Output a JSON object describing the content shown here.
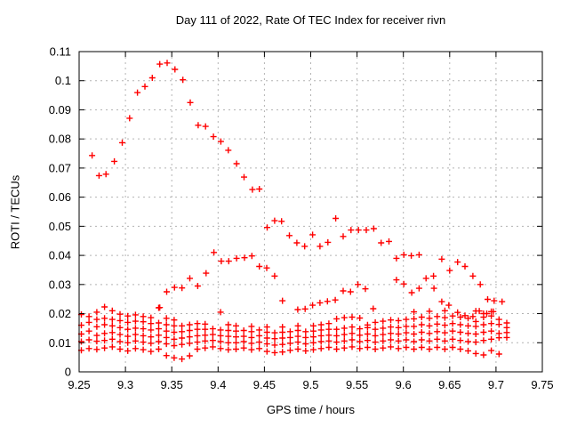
{
  "title": "Day 111 of 2022, Rate Of TEC Index for receiver rivn",
  "colors": {
    "marker": "#ff0000",
    "grid": "#b3b3b3",
    "border": "#000000",
    "background": "#ffffff"
  },
  "chart_data": {
    "type": "scatter",
    "title": "Day 111 of 2022, Rate Of TEC Index for receiver rivn",
    "xlabel": "GPS time / hours",
    "ylabel": "ROTI / TECUs",
    "xlim": [
      9.25,
      9.75
    ],
    "ylim": [
      0,
      0.11
    ],
    "xticks": [
      9.25,
      9.3,
      9.35,
      9.4,
      9.45,
      9.5,
      9.55,
      9.6,
      9.65,
      9.7,
      9.75
    ],
    "xtick_labels": [
      "9.25",
      "9.3",
      "9.35",
      "9.4",
      "9.45",
      "9.5",
      "9.55",
      "9.6",
      "9.65",
      "9.7",
      "9.75"
    ],
    "yticks": [
      0,
      0.01,
      0.02,
      0.03,
      0.04,
      0.05,
      0.06,
      0.07,
      0.08,
      0.09,
      0.1,
      0.11
    ],
    "ytick_labels": [
      "0",
      "0.01",
      "0.02",
      "0.03",
      "0.04",
      "0.05",
      "0.06",
      "0.07",
      "0.08",
      "0.09",
      "0.1",
      "0.11"
    ],
    "grid": true,
    "legend": "none",
    "marker": "plus",
    "points": [
      [
        9.264,
        0.0743
      ],
      [
        9.2715,
        0.0674
      ],
      [
        9.279,
        0.0679
      ],
      [
        9.288,
        0.0723
      ],
      [
        9.2965,
        0.0787
      ],
      [
        9.3045,
        0.0871
      ],
      [
        9.313,
        0.0959
      ],
      [
        9.321,
        0.098
      ],
      [
        9.329,
        0.101
      ],
      [
        9.337,
        0.1057
      ],
      [
        9.345,
        0.1061
      ],
      [
        9.3535,
        0.1039
      ],
      [
        9.362,
        0.1003
      ],
      [
        9.37,
        0.0925
      ],
      [
        9.3785,
        0.0847
      ],
      [
        9.3865,
        0.0843
      ],
      [
        9.395,
        0.0808
      ],
      [
        9.403,
        0.0791
      ],
      [
        9.411,
        0.0761
      ],
      [
        9.42,
        0.0715
      ],
      [
        9.428,
        0.0669
      ],
      [
        9.437,
        0.0626
      ],
      [
        9.4445,
        0.0628
      ],
      [
        9.453,
        0.0496
      ],
      [
        9.461,
        0.0519
      ],
      [
        9.4685,
        0.0517
      ],
      [
        9.477,
        0.0468
      ],
      [
        9.485,
        0.0443
      ],
      [
        9.4935,
        0.0431
      ],
      [
        9.502,
        0.0471
      ],
      [
        9.51,
        0.0431
      ],
      [
        9.5185,
        0.0445
      ],
      [
        9.527,
        0.0527
      ],
      [
        9.535,
        0.0465
      ],
      [
        9.5435,
        0.0487
      ],
      [
        9.5515,
        0.0487
      ],
      [
        9.56,
        0.0487
      ],
      [
        9.568,
        0.0492
      ],
      [
        9.576,
        0.0443
      ],
      [
        9.5845,
        0.0448
      ],
      [
        9.5925,
        0.039
      ],
      [
        9.6005,
        0.0402
      ],
      [
        9.6085,
        0.0399
      ],
      [
        9.617,
        0.0402
      ],
      [
        9.6415,
        0.0387
      ],
      [
        9.65,
        0.0348
      ],
      [
        9.6585,
        0.0377
      ],
      [
        9.6665,
        0.0362
      ],
      [
        9.675,
        0.0329
      ],
      [
        9.683,
        0.03
      ],
      [
        9.3445,
        0.0275
      ],
      [
        9.353,
        0.029
      ],
      [
        9.361,
        0.0288
      ],
      [
        9.3695,
        0.0321
      ],
      [
        9.378,
        0.0295
      ],
      [
        9.387,
        0.0339
      ],
      [
        9.3955,
        0.041
      ],
      [
        9.4035,
        0.038
      ],
      [
        9.4115,
        0.038
      ],
      [
        9.42,
        0.039
      ],
      [
        9.4285,
        0.0392
      ],
      [
        9.4365,
        0.0398
      ],
      [
        9.4445,
        0.0362
      ],
      [
        9.4525,
        0.0357
      ],
      [
        9.461,
        0.0329
      ],
      [
        9.4695,
        0.0244
      ],
      [
        9.486,
        0.0214
      ],
      [
        9.494,
        0.0216
      ],
      [
        9.502,
        0.0229
      ],
      [
        9.51,
        0.0237
      ],
      [
        9.518,
        0.0242
      ],
      [
        9.5265,
        0.0247
      ],
      [
        9.535,
        0.0278
      ],
      [
        9.543,
        0.0275
      ],
      [
        9.551,
        0.03
      ],
      [
        9.559,
        0.0285
      ],
      [
        9.5675,
        0.0217
      ],
      [
        9.5925,
        0.0316
      ],
      [
        9.6005,
        0.0302
      ],
      [
        9.609,
        0.0272
      ],
      [
        9.617,
        0.0287
      ],
      [
        9.6245,
        0.0321
      ],
      [
        9.6325,
        0.0329
      ],
      [
        9.633,
        0.0287
      ],
      [
        9.6415,
        0.0241
      ],
      [
        9.649,
        0.0229
      ],
      [
        9.6585,
        0.0204
      ],
      [
        9.6665,
        0.0193
      ],
      [
        9.675,
        0.019
      ],
      [
        9.682,
        0.0209
      ],
      [
        9.69,
        0.02
      ],
      [
        9.697,
        0.0207
      ],
      [
        9.691,
        0.0249
      ],
      [
        9.698,
        0.0244
      ],
      [
        9.7065,
        0.0241
      ],
      [
        9.337,
        0.0221
      ],
      [
        9.2524,
        0.0074
      ],
      [
        9.2524,
        0.0104
      ],
      [
        9.2524,
        0.013
      ],
      [
        9.2524,
        0.016
      ],
      [
        9.2524,
        0.0197
      ],
      [
        9.2607,
        0.008
      ],
      [
        9.2607,
        0.011
      ],
      [
        9.2607,
        0.014
      ],
      [
        9.2607,
        0.017
      ],
      [
        9.2607,
        0.019
      ],
      [
        9.2691,
        0.0077
      ],
      [
        9.2691,
        0.0105
      ],
      [
        9.2691,
        0.0125
      ],
      [
        9.2691,
        0.0155
      ],
      [
        9.2691,
        0.018
      ],
      [
        9.2691,
        0.0205
      ],
      [
        9.2774,
        0.0082
      ],
      [
        9.2774,
        0.0108
      ],
      [
        9.2774,
        0.0132
      ],
      [
        9.2774,
        0.0162
      ],
      [
        9.2774,
        0.0184
      ],
      [
        9.2774,
        0.0223
      ],
      [
        9.2858,
        0.0086
      ],
      [
        9.2858,
        0.0112
      ],
      [
        9.2858,
        0.0135
      ],
      [
        9.2858,
        0.0158
      ],
      [
        9.2858,
        0.018
      ],
      [
        9.2858,
        0.021
      ],
      [
        9.2941,
        0.0078
      ],
      [
        9.2941,
        0.0104
      ],
      [
        9.2941,
        0.0128
      ],
      [
        9.2941,
        0.0152
      ],
      [
        9.2941,
        0.0176
      ],
      [
        9.2941,
        0.0198
      ],
      [
        9.3025,
        0.0072
      ],
      [
        9.3025,
        0.01
      ],
      [
        9.3025,
        0.0122
      ],
      [
        9.3025,
        0.0146
      ],
      [
        9.3025,
        0.017
      ],
      [
        9.3025,
        0.0192
      ],
      [
        9.3108,
        0.008
      ],
      [
        9.3108,
        0.0106
      ],
      [
        9.3108,
        0.0128
      ],
      [
        9.3108,
        0.015
      ],
      [
        9.3108,
        0.0174
      ],
      [
        9.3108,
        0.0196
      ],
      [
        9.3192,
        0.0076
      ],
      [
        9.3192,
        0.0102
      ],
      [
        9.3192,
        0.0124
      ],
      [
        9.3192,
        0.0148
      ],
      [
        9.3192,
        0.0172
      ],
      [
        9.3192,
        0.019
      ],
      [
        9.3275,
        0.007
      ],
      [
        9.3275,
        0.0098
      ],
      [
        9.3275,
        0.012
      ],
      [
        9.3275,
        0.0144
      ],
      [
        9.3275,
        0.0166
      ],
      [
        9.3275,
        0.0186
      ],
      [
        9.3359,
        0.0078
      ],
      [
        9.3359,
        0.0104
      ],
      [
        9.3359,
        0.0126
      ],
      [
        9.3359,
        0.0148
      ],
      [
        9.3359,
        0.0168
      ],
      [
        9.3359,
        0.022
      ],
      [
        9.3442,
        0.0056
      ],
      [
        9.3442,
        0.0096
      ],
      [
        9.3442,
        0.0118
      ],
      [
        9.3442,
        0.014
      ],
      [
        9.3442,
        0.0162
      ],
      [
        9.3442,
        0.0184
      ],
      [
        9.3526,
        0.0048
      ],
      [
        9.3526,
        0.009
      ],
      [
        9.3526,
        0.0112
      ],
      [
        9.3526,
        0.0136
      ],
      [
        9.3526,
        0.0158
      ],
      [
        9.3526,
        0.0178
      ],
      [
        9.3609,
        0.0044
      ],
      [
        9.3609,
        0.0094
      ],
      [
        9.3609,
        0.0116
      ],
      [
        9.3609,
        0.0138
      ],
      [
        9.3609,
        0.0158
      ],
      [
        9.3693,
        0.0055
      ],
      [
        9.3693,
        0.0098
      ],
      [
        9.3693,
        0.012
      ],
      [
        9.3693,
        0.0142
      ],
      [
        9.3693,
        0.0162
      ],
      [
        9.3776,
        0.0078
      ],
      [
        9.3776,
        0.0102
      ],
      [
        9.3776,
        0.0124
      ],
      [
        9.3776,
        0.0146
      ],
      [
        9.3776,
        0.0166
      ],
      [
        9.386,
        0.0082
      ],
      [
        9.386,
        0.0106
      ],
      [
        9.386,
        0.0126
      ],
      [
        9.386,
        0.0146
      ],
      [
        9.386,
        0.0164
      ],
      [
        9.3943,
        0.0086
      ],
      [
        9.3943,
        0.0108
      ],
      [
        9.3943,
        0.0128
      ],
      [
        9.3943,
        0.0148
      ],
      [
        9.4027,
        0.008
      ],
      [
        9.4027,
        0.0104
      ],
      [
        9.4027,
        0.0124
      ],
      [
        9.4027,
        0.0144
      ],
      [
        9.4027,
        0.0205
      ],
      [
        9.411,
        0.0076
      ],
      [
        9.411,
        0.01
      ],
      [
        9.411,
        0.0122
      ],
      [
        9.411,
        0.0142
      ],
      [
        9.411,
        0.0162
      ],
      [
        9.4194,
        0.0078
      ],
      [
        9.4194,
        0.01
      ],
      [
        9.4194,
        0.012
      ],
      [
        9.4194,
        0.014
      ],
      [
        9.4194,
        0.0158
      ],
      [
        9.4277,
        0.0082
      ],
      [
        9.4277,
        0.0104
      ],
      [
        9.4277,
        0.0122
      ],
      [
        9.4277,
        0.0142
      ],
      [
        9.4361,
        0.0076
      ],
      [
        9.4361,
        0.0098
      ],
      [
        9.4361,
        0.0118
      ],
      [
        9.4361,
        0.0138
      ],
      [
        9.4361,
        0.0156
      ],
      [
        9.4444,
        0.008
      ],
      [
        9.4444,
        0.0102
      ],
      [
        9.4444,
        0.0124
      ],
      [
        9.4444,
        0.0144
      ],
      [
        9.4528,
        0.007
      ],
      [
        9.4528,
        0.0096
      ],
      [
        9.4528,
        0.0116
      ],
      [
        9.4528,
        0.0136
      ],
      [
        9.4528,
        0.0154
      ],
      [
        9.4611,
        0.0066
      ],
      [
        9.4611,
        0.0092
      ],
      [
        9.4611,
        0.0114
      ],
      [
        9.4611,
        0.0134
      ],
      [
        9.4695,
        0.0068
      ],
      [
        9.4695,
        0.0094
      ],
      [
        9.4695,
        0.0116
      ],
      [
        9.4695,
        0.0136
      ],
      [
        9.4695,
        0.0154
      ],
      [
        9.4778,
        0.0074
      ],
      [
        9.4778,
        0.0098
      ],
      [
        9.4778,
        0.0118
      ],
      [
        9.4778,
        0.0138
      ],
      [
        9.4862,
        0.0078
      ],
      [
        9.4862,
        0.0102
      ],
      [
        9.4862,
        0.0122
      ],
      [
        9.4862,
        0.0142
      ],
      [
        9.4862,
        0.0158
      ],
      [
        9.4945,
        0.0072
      ],
      [
        9.4945,
        0.0096
      ],
      [
        9.4945,
        0.0118
      ],
      [
        9.4945,
        0.0138
      ],
      [
        9.5029,
        0.0076
      ],
      [
        9.5029,
        0.01
      ],
      [
        9.5029,
        0.012
      ],
      [
        9.5029,
        0.014
      ],
      [
        9.5029,
        0.0158
      ],
      [
        9.5112,
        0.008
      ],
      [
        9.5112,
        0.0104
      ],
      [
        9.5112,
        0.0124
      ],
      [
        9.5112,
        0.0144
      ],
      [
        9.5112,
        0.0162
      ],
      [
        9.5196,
        0.0084
      ],
      [
        9.5196,
        0.0106
      ],
      [
        9.5196,
        0.0126
      ],
      [
        9.5196,
        0.0146
      ],
      [
        9.5196,
        0.0166
      ],
      [
        9.5279,
        0.0078
      ],
      [
        9.5279,
        0.0102
      ],
      [
        9.5279,
        0.0124
      ],
      [
        9.5279,
        0.0146
      ],
      [
        9.5279,
        0.0182
      ],
      [
        9.5363,
        0.0082
      ],
      [
        9.5363,
        0.0106
      ],
      [
        9.5363,
        0.0128
      ],
      [
        9.5363,
        0.015
      ],
      [
        9.5363,
        0.0186
      ],
      [
        9.5446,
        0.0086
      ],
      [
        9.5446,
        0.011
      ],
      [
        9.5446,
        0.0132
      ],
      [
        9.5446,
        0.0154
      ],
      [
        9.5446,
        0.0188
      ],
      [
        9.553,
        0.008
      ],
      [
        9.553,
        0.0104
      ],
      [
        9.553,
        0.0126
      ],
      [
        9.553,
        0.0148
      ],
      [
        9.553,
        0.0185
      ],
      [
        9.5613,
        0.0084
      ],
      [
        9.5613,
        0.0108
      ],
      [
        9.5613,
        0.013
      ],
      [
        9.5613,
        0.0152
      ],
      [
        9.5613,
        0.0161
      ],
      [
        9.5697,
        0.0078
      ],
      [
        9.5697,
        0.0102
      ],
      [
        9.5697,
        0.0124
      ],
      [
        9.5697,
        0.0146
      ],
      [
        9.5697,
        0.017
      ],
      [
        9.578,
        0.0082
      ],
      [
        9.578,
        0.0106
      ],
      [
        9.578,
        0.0128
      ],
      [
        9.578,
        0.015
      ],
      [
        9.578,
        0.0174
      ],
      [
        9.5864,
        0.0086
      ],
      [
        9.5864,
        0.011
      ],
      [
        9.5864,
        0.0132
      ],
      [
        9.5864,
        0.0154
      ],
      [
        9.5864,
        0.0178
      ],
      [
        9.5947,
        0.008
      ],
      [
        9.5947,
        0.0106
      ],
      [
        9.5947,
        0.013
      ],
      [
        9.5947,
        0.0152
      ],
      [
        9.5947,
        0.0176
      ],
      [
        9.6031,
        0.0084
      ],
      [
        9.6031,
        0.011
      ],
      [
        9.6031,
        0.0134
      ],
      [
        9.6031,
        0.0156
      ],
      [
        9.6031,
        0.018
      ],
      [
        9.6114,
        0.0078
      ],
      [
        9.6114,
        0.0104
      ],
      [
        9.6114,
        0.013
      ],
      [
        9.6114,
        0.0156
      ],
      [
        9.6114,
        0.0182
      ],
      [
        9.6114,
        0.0206
      ],
      [
        9.6198,
        0.0084
      ],
      [
        9.6198,
        0.011
      ],
      [
        9.6198,
        0.0136
      ],
      [
        9.6198,
        0.0162
      ],
      [
        9.6198,
        0.0188
      ],
      [
        9.6281,
        0.0078
      ],
      [
        9.6281,
        0.0106
      ],
      [
        9.6281,
        0.0132
      ],
      [
        9.6281,
        0.0158
      ],
      [
        9.6281,
        0.0184
      ],
      [
        9.6281,
        0.0208
      ],
      [
        9.6365,
        0.0084
      ],
      [
        9.6365,
        0.0112
      ],
      [
        9.6365,
        0.0138
      ],
      [
        9.6365,
        0.0164
      ],
      [
        9.6365,
        0.019
      ],
      [
        9.6448,
        0.0078
      ],
      [
        9.6448,
        0.0106
      ],
      [
        9.6448,
        0.0134
      ],
      [
        9.6448,
        0.016
      ],
      [
        9.6448,
        0.0186
      ],
      [
        9.6448,
        0.021
      ],
      [
        9.6532,
        0.0084
      ],
      [
        9.6532,
        0.0112
      ],
      [
        9.6532,
        0.014
      ],
      [
        9.6532,
        0.0166
      ],
      [
        9.6532,
        0.0192
      ],
      [
        9.6615,
        0.0078
      ],
      [
        9.6615,
        0.0108
      ],
      [
        9.6615,
        0.0136
      ],
      [
        9.6615,
        0.0162
      ],
      [
        9.6615,
        0.0188
      ],
      [
        9.6699,
        0.0072
      ],
      [
        9.6699,
        0.0104
      ],
      [
        9.6699,
        0.0132
      ],
      [
        9.6699,
        0.0158
      ],
      [
        9.6699,
        0.0184
      ],
      [
        9.6782,
        0.0063
      ],
      [
        9.6782,
        0.0102
      ],
      [
        9.6782,
        0.013
      ],
      [
        9.6782,
        0.0156
      ],
      [
        9.6782,
        0.0173
      ],
      [
        9.6782,
        0.0209
      ],
      [
        9.6866,
        0.0058
      ],
      [
        9.6866,
        0.0108
      ],
      [
        9.6866,
        0.0136
      ],
      [
        9.6866,
        0.0162
      ],
      [
        9.6866,
        0.0188
      ],
      [
        9.6866,
        0.02
      ],
      [
        9.6949,
        0.0073
      ],
      [
        9.6949,
        0.0112
      ],
      [
        9.6949,
        0.014
      ],
      [
        9.6949,
        0.0166
      ],
      [
        9.6949,
        0.0192
      ],
      [
        9.6949,
        0.0207
      ],
      [
        9.7033,
        0.0061
      ],
      [
        9.7033,
        0.0117
      ],
      [
        9.7033,
        0.0132
      ],
      [
        9.7033,
        0.0163
      ],
      [
        9.7033,
        0.018
      ],
      [
        9.7116,
        0.0118
      ],
      [
        9.7116,
        0.0135
      ],
      [
        9.7116,
        0.0152
      ],
      [
        9.7116,
        0.0168
      ]
    ]
  }
}
